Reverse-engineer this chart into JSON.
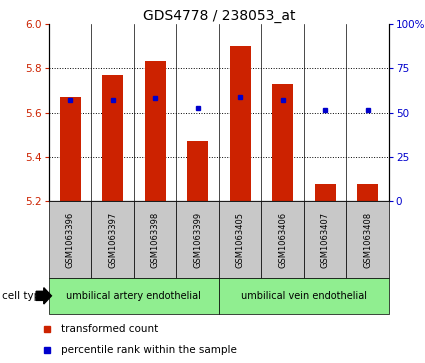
{
  "title": "GDS4778 / 238053_at",
  "samples": [
    "GSM1063396",
    "GSM1063397",
    "GSM1063398",
    "GSM1063399",
    "GSM1063405",
    "GSM1063406",
    "GSM1063407",
    "GSM1063408"
  ],
  "red_bar_tops": [
    5.67,
    5.77,
    5.83,
    5.47,
    5.9,
    5.73,
    5.28,
    5.28
  ],
  "blue_y": [
    5.655,
    5.655,
    5.665,
    5.62,
    5.668,
    5.655,
    5.61,
    5.61
  ],
  "baseline": 5.2,
  "ylim_left": [
    5.2,
    6.0
  ],
  "ylim_right": [
    0,
    100
  ],
  "yticks_left": [
    5.2,
    5.4,
    5.6,
    5.8,
    6.0
  ],
  "yticks_right": [
    0,
    25,
    50,
    75,
    100
  ],
  "ytick_labels_right": [
    "0",
    "25",
    "50",
    "75",
    "100%"
  ],
  "group1_label": "umbilical artery endothelial",
  "group2_label": "umbilical vein endothelial",
  "cell_type_label": "cell type",
  "legend_red_label": "transformed count",
  "legend_blue_label": "percentile rank within the sample",
  "bar_color": "#CC2200",
  "blue_color": "#0000CC",
  "bar_width": 0.5,
  "title_fontsize": 10,
  "axis_color_left": "#CC2200",
  "axis_color_right": "#0000CC",
  "grid_color": "black",
  "gray_box_color": "#C8C8C8",
  "group_box_color": "#90EE90"
}
